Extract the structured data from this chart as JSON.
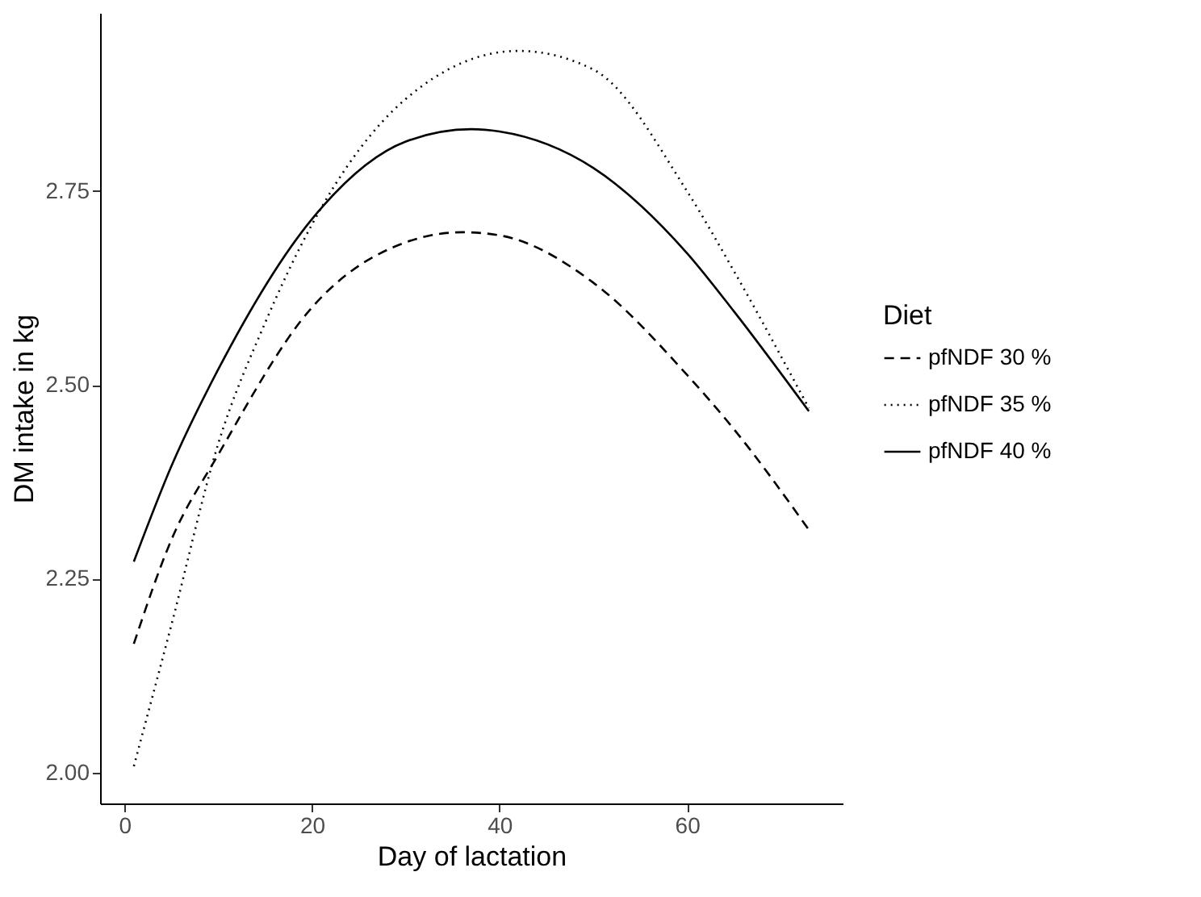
{
  "chart_data": {
    "type": "line",
    "xlabel": "Day of lactation",
    "ylabel": "DM intake in kg",
    "legend_title": "Diet",
    "xlim": [
      -2.6,
      76.6
    ],
    "ylim": [
      1.96,
      2.98
    ],
    "xticks": [
      0,
      20,
      40,
      60
    ],
    "yticks": [
      {
        "value": 2.0,
        "label": "2.00"
      },
      {
        "value": 2.25,
        "label": "2.25"
      },
      {
        "value": 2.5,
        "label": "2.50"
      },
      {
        "value": 2.75,
        "label": "2.75"
      }
    ],
    "grid": false,
    "legend": "right",
    "marker": "none",
    "series": [
      {
        "name": "pfNDF 30 %",
        "color": "#000000",
        "line_style": "dashed",
        "x": [
          1,
          5,
          10,
          20,
          30,
          36,
          40,
          50,
          60,
          65,
          73
        ],
        "values": [
          2.166,
          2.3,
          2.41,
          2.6,
          2.684,
          2.697,
          2.693,
          2.632,
          2.513,
          2.443,
          2.313
        ]
      },
      {
        "name": "pfNDF 35 %",
        "color": "#000000",
        "line_style": "dotted",
        "x": [
          1,
          5,
          10,
          15,
          20,
          30,
          42,
          50,
          60,
          65,
          73
        ],
        "values": [
          2.008,
          2.19,
          2.424,
          2.58,
          2.707,
          2.869,
          2.931,
          2.907,
          2.75,
          2.647,
          2.47
        ]
      },
      {
        "name": "pfNDF 40 %",
        "color": "#000000",
        "line_style": "solid",
        "x": [
          1,
          5,
          10,
          20,
          30,
          37,
          40,
          50,
          60,
          65,
          73
        ],
        "values": [
          2.272,
          2.395,
          2.52,
          2.714,
          2.814,
          2.83,
          2.827,
          2.78,
          2.67,
          2.595,
          2.466
        ]
      }
    ]
  }
}
